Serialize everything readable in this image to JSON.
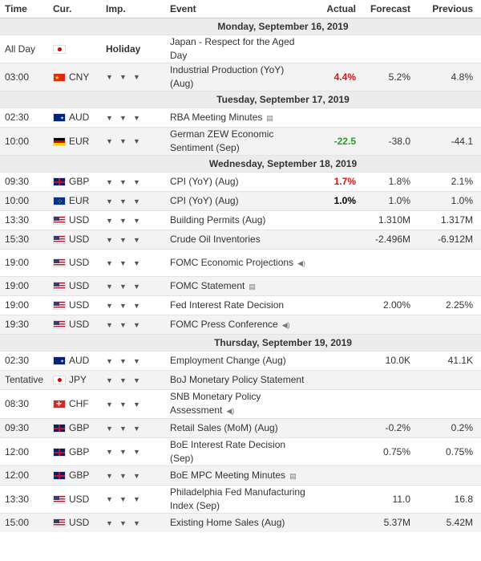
{
  "headers": {
    "time": "Time",
    "cur": "Cur.",
    "imp": "Imp.",
    "event": "Event",
    "actual": "Actual",
    "forecast": "Forecast",
    "previous": "Previous"
  },
  "rows": [
    {
      "type": "day",
      "label": "Monday, September 16, 2019"
    },
    {
      "time": "All Day",
      "flag": "JP",
      "cur": "",
      "imp": "holiday",
      "impLabel": "Holiday",
      "event": "Japan - Respect for the Aged Day",
      "actual": "",
      "forecast": "",
      "previous": ""
    },
    {
      "time": "03:00",
      "flag": "CN",
      "cur": "CNY",
      "imp": 3,
      "event": "Industrial Production (YoY) (Aug)",
      "actual": "4.4%",
      "actualColor": "red",
      "forecast": "5.2%",
      "previous": "4.8%"
    },
    {
      "type": "day",
      "label": "Tuesday, September 17, 2019"
    },
    {
      "time": "02:30",
      "flag": "AU",
      "cur": "AUD",
      "imp": 3,
      "event": "RBA Meeting Minutes",
      "eventIcon": "document-icon",
      "actual": "",
      "forecast": "",
      "previous": ""
    },
    {
      "time": "10:00",
      "flag": "DE",
      "cur": "EUR",
      "imp": 3,
      "event": "German ZEW Economic Sentiment (Sep)",
      "actual": "-22.5",
      "actualColor": "green",
      "forecast": "-38.0",
      "previous": "-44.1"
    },
    {
      "type": "day",
      "label": "Wednesday, September 18, 2019"
    },
    {
      "time": "09:30",
      "flag": "GB",
      "cur": "GBP",
      "imp": 3,
      "event": "CPI (YoY) (Aug)",
      "actual": "1.7%",
      "actualColor": "red",
      "forecast": "1.8%",
      "previous": "2.1%"
    },
    {
      "time": "10:00",
      "flag": "EU",
      "cur": "EUR",
      "imp": 3,
      "event": "CPI (YoY) (Aug)",
      "actual": "1.0%",
      "actualColor": "black",
      "forecast": "1.0%",
      "previous": "1.0%"
    },
    {
      "time": "13:30",
      "flag": "US",
      "cur": "USD",
      "imp": 3,
      "event": "Building Permits (Aug)",
      "actual": "",
      "forecast": "1.310M",
      "previous": "1.317M"
    },
    {
      "time": "15:30",
      "flag": "US",
      "cur": "USD",
      "imp": 3,
      "event": "Crude Oil Inventories",
      "actual": "",
      "forecast": "-2.496M",
      "previous": "-6.912M"
    },
    {
      "time": "19:00",
      "flag": "US",
      "cur": "USD",
      "imp": 3,
      "event": "FOMC Economic Projections",
      "eventIcon": "speaker-icon",
      "actual": "",
      "forecast": "",
      "previous": ""
    },
    {
      "time": "19:00",
      "flag": "US",
      "cur": "USD",
      "imp": 3,
      "event": "FOMC Statement",
      "eventIcon": "document-icon",
      "actual": "",
      "forecast": "",
      "previous": ""
    },
    {
      "time": "19:00",
      "flag": "US",
      "cur": "USD",
      "imp": 3,
      "event": "Fed Interest Rate Decision",
      "actual": "",
      "forecast": "2.00%",
      "previous": "2.25%"
    },
    {
      "time": "19:30",
      "flag": "US",
      "cur": "USD",
      "imp": 3,
      "event": "FOMC Press Conference",
      "eventIcon": "speaker-icon",
      "actual": "",
      "forecast": "",
      "previous": ""
    },
    {
      "type": "day",
      "label": "Thursday, September 19, 2019"
    },
    {
      "time": "02:30",
      "flag": "AU",
      "cur": "AUD",
      "imp": 3,
      "event": "Employment Change (Aug)",
      "actual": "",
      "forecast": "10.0K",
      "previous": "41.1K"
    },
    {
      "time": "Tentative",
      "flag": "JP",
      "cur": "JPY",
      "imp": 3,
      "event": "BoJ Monetary Policy Statement",
      "actual": "",
      "forecast": "",
      "previous": ""
    },
    {
      "time": "08:30",
      "flag": "CH",
      "cur": "CHF",
      "imp": 3,
      "event": "SNB Monetary Policy Assessment",
      "eventIcon": "speaker-icon",
      "actual": "",
      "forecast": "",
      "previous": ""
    },
    {
      "time": "09:30",
      "flag": "GB",
      "cur": "GBP",
      "imp": 3,
      "event": "Retail Sales (MoM) (Aug)",
      "actual": "",
      "forecast": "-0.2%",
      "previous": "0.2%"
    },
    {
      "time": "12:00",
      "flag": "GB",
      "cur": "GBP",
      "imp": 3,
      "event": "BoE Interest Rate Decision (Sep)",
      "actual": "",
      "forecast": "0.75%",
      "previous": "0.75%"
    },
    {
      "time": "12:00",
      "flag": "GB",
      "cur": "GBP",
      "imp": 3,
      "event": "BoE MPC Meeting Minutes",
      "eventIcon": "document-icon",
      "actual": "",
      "forecast": "",
      "previous": ""
    },
    {
      "time": "13:30",
      "flag": "US",
      "cur": "USD",
      "imp": 3,
      "event": "Philadelphia Fed Manufacturing Index (Sep)",
      "actual": "",
      "forecast": "11.0",
      "previous": "16.8"
    },
    {
      "time": "15:00",
      "flag": "US",
      "cur": "USD",
      "imp": 3,
      "event": "Existing Home Sales (Aug)",
      "actual": "",
      "forecast": "5.37M",
      "previous": "5.42M"
    }
  ]
}
